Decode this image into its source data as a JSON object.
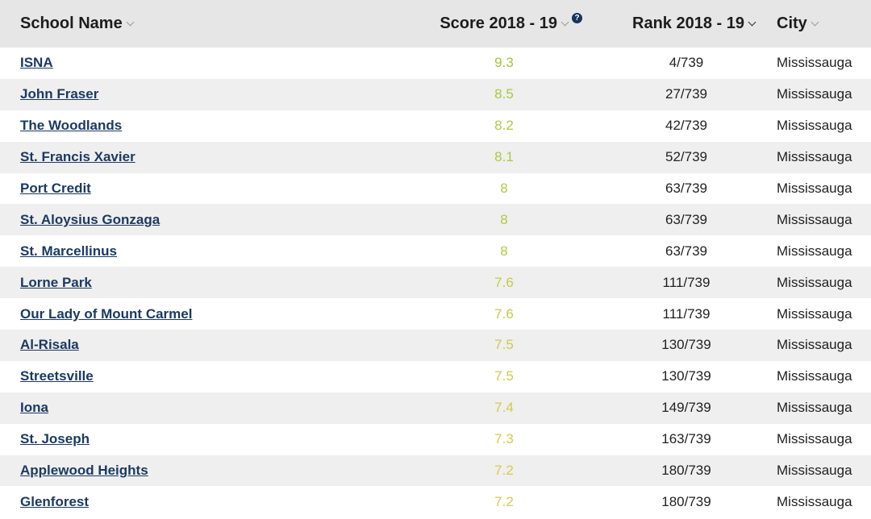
{
  "header": {
    "school_name": "School Name",
    "score": "Score 2018 - 19",
    "rank": "Rank 2018 - 19",
    "city": "City",
    "help_glyph": "?"
  },
  "colors": {
    "score_green": "#a6c83a",
    "score_yellow": "#d9c84a",
    "link": "#1b3a63",
    "header_bg": "#e6e6e6",
    "row_alt_bg": "#efefef"
  },
  "rows": [
    {
      "name": "ISNA",
      "score": "9.3",
      "rank": "4/739",
      "city": "Mississauga",
      "color": "#a4c63a"
    },
    {
      "name": "John Fraser",
      "score": "8.5",
      "rank": "27/739",
      "city": "Mississauga",
      "color": "#a9c83c"
    },
    {
      "name": "The Woodlands",
      "score": "8.2",
      "rank": "42/739",
      "city": "Mississauga",
      "color": "#acc93d"
    },
    {
      "name": "St. Francis Xavier",
      "score": "8.1",
      "rank": "52/739",
      "city": "Mississauga",
      "color": "#adc93e"
    },
    {
      "name": "Port Credit",
      "score": "8",
      "rank": "63/739",
      "city": "Mississauga",
      "color": "#b2ca3f"
    },
    {
      "name": "St. Aloysius Gonzaga",
      "score": "8",
      "rank": "63/739",
      "city": "Mississauga",
      "color": "#b2ca3f"
    },
    {
      "name": "St. Marcellinus",
      "score": "8",
      "rank": "63/739",
      "city": "Mississauga",
      "color": "#b2ca3f"
    },
    {
      "name": "Lorne Park",
      "score": "7.6",
      "rank": "111/739",
      "city": "Mississauga",
      "color": "#c3cb45"
    },
    {
      "name": "Our Lady of Mount Carmel",
      "score": "7.6",
      "rank": "111/739",
      "city": "Mississauga",
      "color": "#c3cb45"
    },
    {
      "name": "Al-Risala",
      "score": "7.5",
      "rank": "130/739",
      "city": "Mississauga",
      "color": "#cccb47"
    },
    {
      "name": "Streetsville",
      "score": "7.5",
      "rank": "130/739",
      "city": "Mississauga",
      "color": "#cccb47"
    },
    {
      "name": "Iona",
      "score": "7.4",
      "rank": "149/739",
      "city": "Mississauga",
      "color": "#d3ca48"
    },
    {
      "name": "St. Joseph",
      "score": "7.3",
      "rank": "163/739",
      "city": "Mississauga",
      "color": "#d8c94a"
    },
    {
      "name": "Applewood Heights",
      "score": "7.2",
      "rank": "180/739",
      "city": "Mississauga",
      "color": "#dcc84b"
    },
    {
      "name": "Glenforest",
      "score": "7.2",
      "rank": "180/739",
      "city": "Mississauga",
      "color": "#dcc84b"
    }
  ]
}
